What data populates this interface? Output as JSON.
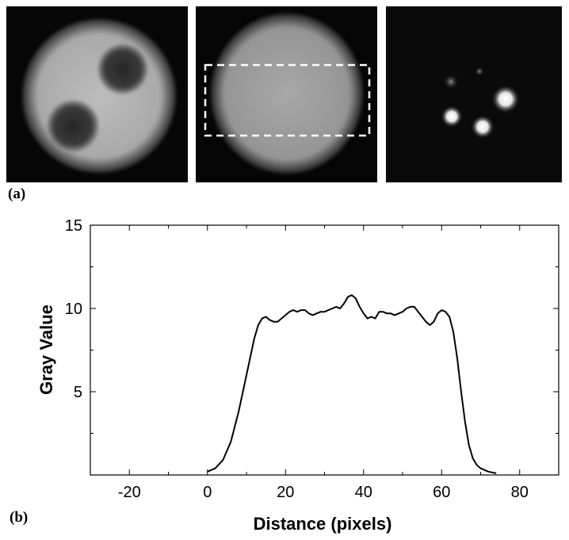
{
  "panels": {
    "a_label": "(a)",
    "b_label": "(b)"
  },
  "chart_data": {
    "type": "line",
    "xlabel": "Distance (pixels)",
    "ylabel": "Gray Value",
    "xlim": [
      -30,
      90
    ],
    "ylim": [
      0,
      15
    ],
    "xticks": [
      -20,
      0,
      20,
      40,
      60,
      80
    ],
    "yticks": [
      5,
      10,
      15
    ],
    "grid": false,
    "series": [
      {
        "color": "#000000",
        "points": [
          [
            0,
            0.2
          ],
          [
            2,
            0.4
          ],
          [
            4,
            0.9
          ],
          [
            6,
            2.0
          ],
          [
            8,
            3.8
          ],
          [
            10,
            6.0
          ],
          [
            12,
            8.2
          ],
          [
            13,
            9.0
          ],
          [
            14,
            9.4
          ],
          [
            15,
            9.5
          ],
          [
            16,
            9.3
          ],
          [
            17,
            9.2
          ],
          [
            18,
            9.2
          ],
          [
            19,
            9.4
          ],
          [
            20,
            9.6
          ],
          [
            21,
            9.8
          ],
          [
            22,
            9.9
          ],
          [
            23,
            9.8
          ],
          [
            24,
            9.9
          ],
          [
            25,
            9.9
          ],
          [
            26,
            9.7
          ],
          [
            27,
            9.6
          ],
          [
            28,
            9.7
          ],
          [
            29,
            9.8
          ],
          [
            30,
            9.8
          ],
          [
            31,
            9.9
          ],
          [
            32,
            10.0
          ],
          [
            33,
            10.1
          ],
          [
            34,
            10.0
          ],
          [
            35,
            10.3
          ],
          [
            36,
            10.7
          ],
          [
            37,
            10.8
          ],
          [
            38,
            10.6
          ],
          [
            39,
            10.1
          ],
          [
            40,
            9.7
          ],
          [
            41,
            9.4
          ],
          [
            42,
            9.5
          ],
          [
            43,
            9.4
          ],
          [
            44,
            9.8
          ],
          [
            45,
            9.8
          ],
          [
            46,
            9.7
          ],
          [
            47,
            9.7
          ],
          [
            48,
            9.6
          ],
          [
            49,
            9.7
          ],
          [
            50,
            9.8
          ],
          [
            51,
            10.0
          ],
          [
            52,
            10.1
          ],
          [
            53,
            10.1
          ],
          [
            54,
            9.8
          ],
          [
            55,
            9.5
          ],
          [
            56,
            9.2
          ],
          [
            57,
            9.0
          ],
          [
            58,
            9.2
          ],
          [
            59,
            9.7
          ],
          [
            60,
            9.9
          ],
          [
            61,
            9.8
          ],
          [
            62,
            9.5
          ],
          [
            63,
            8.6
          ],
          [
            64,
            7.0
          ],
          [
            65,
            5.0
          ],
          [
            66,
            3.2
          ],
          [
            67,
            1.8
          ],
          [
            68,
            1.0
          ],
          [
            69,
            0.6
          ],
          [
            70,
            0.4
          ],
          [
            71,
            0.3
          ],
          [
            72,
            0.2
          ],
          [
            74,
            0.1
          ]
        ]
      }
    ]
  }
}
